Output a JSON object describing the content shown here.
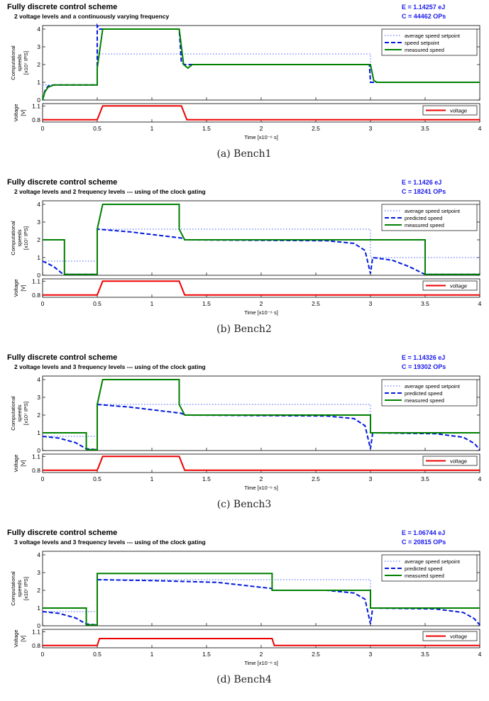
{
  "colors": {
    "setpoint": "#4060ff",
    "dashed": "#0018dd",
    "measured": "#008000",
    "voltage": "#ee0000",
    "stats": "#1a1aee"
  },
  "common": {
    "title": "Fully discrete control scheme",
    "speed_ylabel": [
      "Computational",
      "speeds",
      "[x10⁷ IPS]"
    ],
    "voltage_ylabel": [
      "Voltage",
      "[V]"
    ],
    "xlabel": "Time [x10⁻⁶ s]",
    "x_ticks": [
      "0",
      "0.5",
      "1",
      "1.5",
      "2",
      "2.5",
      "3",
      "3.5",
      "4"
    ],
    "speed_yticks": [
      "0",
      "1",
      "2",
      "3",
      "4"
    ],
    "voltage_yticks": [
      "0.8",
      "1.1"
    ],
    "legend_voltage": "voltage"
  },
  "chart_data": [
    {
      "type": "line",
      "title": "Fully discrete control scheme",
      "subtitle": "2 voltage levels and a continuously varying frequency",
      "energy": "E = 1.14257 eJ",
      "cycles": "C = 44462 OPs",
      "caption": "(a)  Bench1",
      "xlim": [
        0,
        4
      ],
      "ylim_speed": [
        0,
        4.2
      ],
      "ylim_voltage": [
        0.75,
        1.15
      ],
      "series": [
        {
          "name": "average speed setpoint",
          "style": "dotted",
          "points": [
            [
              0,
              0.85
            ],
            [
              0.5,
              0.85
            ],
            [
              0.5,
              2.6
            ],
            [
              1.27,
              2.6
            ],
            [
              3.0,
              2.6
            ],
            [
              3.0,
              1.0
            ],
            [
              4,
              1.0
            ]
          ]
        },
        {
          "name": "speed setpoint",
          "style": "dashed",
          "points": [
            [
              0,
              0
            ],
            [
              0.02,
              0.5
            ],
            [
              0.05,
              0.78
            ],
            [
              0.1,
              0.85
            ],
            [
              0.5,
              0.85
            ],
            [
              0.5,
              4.2
            ],
            [
              0.52,
              4.0
            ],
            [
              1.25,
              4.0
            ],
            [
              1.27,
              2.1
            ],
            [
              1.3,
              2.0
            ],
            [
              2.99,
              2.0
            ],
            [
              3.0,
              1.0
            ],
            [
              4,
              1.0
            ]
          ]
        },
        {
          "name": "measured speed",
          "style": "solid",
          "points": [
            [
              0,
              0
            ],
            [
              0.02,
              0.45
            ],
            [
              0.05,
              0.72
            ],
            [
              0.1,
              0.85
            ],
            [
              0.5,
              0.85
            ],
            [
              0.5,
              1.8
            ],
            [
              0.55,
              4.0
            ],
            [
              1.25,
              4.0
            ],
            [
              1.29,
              2.0
            ],
            [
              1.33,
              1.8
            ],
            [
              1.37,
              2.0
            ],
            [
              3.0,
              2.0
            ],
            [
              3.03,
              1.1
            ],
            [
              3.06,
              1.0
            ],
            [
              4,
              1.0
            ]
          ]
        }
      ],
      "voltage": [
        [
          0,
          0.8
        ],
        [
          0.5,
          0.8
        ],
        [
          0.55,
          1.1
        ],
        [
          1.27,
          1.1
        ],
        [
          1.32,
          0.8
        ],
        [
          4,
          0.8
        ]
      ]
    },
    {
      "type": "line",
      "title": "Fully discrete control scheme",
      "subtitle": "2 voltage levels and 2 frequency levels --- using of the clock gating",
      "energy": "E = 1.1426 eJ",
      "cycles": "C = 18241 OPs",
      "caption": "(b)  Bench2",
      "xlim": [
        0,
        4
      ],
      "ylim_speed": [
        0,
        4.2
      ],
      "ylim_voltage": [
        0.75,
        1.15
      ],
      "series": [
        {
          "name": "average speed setpoint",
          "style": "dotted",
          "points": [
            [
              0,
              0.8
            ],
            [
              0.5,
              0.8
            ],
            [
              0.5,
              2.6
            ],
            [
              3.0,
              2.6
            ],
            [
              3.0,
              1.0
            ],
            [
              4,
              1.0
            ]
          ]
        },
        {
          "name": "predicted speed",
          "style": "dashed",
          "points": [
            [
              0,
              0.8
            ],
            [
              0.1,
              0.5
            ],
            [
              0.18,
              0.1
            ],
            [
              0.2,
              0.05
            ],
            [
              0.5,
              0.05
            ],
            [
              0.5,
              2.6
            ],
            [
              0.8,
              2.45
            ],
            [
              1.27,
              2.1
            ],
            [
              1.3,
              2.0
            ],
            [
              2.6,
              1.95
            ],
            [
              2.85,
              1.8
            ],
            [
              2.95,
              1.4
            ],
            [
              3.0,
              0.1
            ],
            [
              3.02,
              1.0
            ],
            [
              3.2,
              0.85
            ],
            [
              3.35,
              0.5
            ],
            [
              3.5,
              0.05
            ],
            [
              4,
              0.05
            ]
          ]
        },
        {
          "name": "measured speed",
          "style": "solid",
          "points": [
            [
              0,
              2.0
            ],
            [
              0.2,
              2.0
            ],
            [
              0.2,
              0.05
            ],
            [
              0.5,
              0.05
            ],
            [
              0.5,
              2.6
            ],
            [
              0.55,
              4.0
            ],
            [
              1.25,
              4.0
            ],
            [
              1.25,
              2.6
            ],
            [
              1.3,
              2.0
            ],
            [
              3.5,
              2.0
            ],
            [
              3.5,
              0.05
            ],
            [
              4,
              0.05
            ]
          ]
        }
      ],
      "voltage": [
        [
          0,
          0.8
        ],
        [
          0.5,
          0.8
        ],
        [
          0.55,
          1.1
        ],
        [
          1.25,
          1.1
        ],
        [
          1.3,
          0.8
        ],
        [
          4,
          0.8
        ]
      ]
    },
    {
      "type": "line",
      "title": "Fully discrete control scheme",
      "subtitle": "2 voltage levels and 3 frequency levels --- using of the clock gating",
      "energy": "E = 1.14326 eJ",
      "cycles": "C = 19302 OPs",
      "caption": "(c)  Bench3",
      "xlim": [
        0,
        4
      ],
      "ylim_speed": [
        0,
        4.2
      ],
      "ylim_voltage": [
        0.75,
        1.15
      ],
      "series": [
        {
          "name": "average speed setpoint",
          "style": "dotted",
          "points": [
            [
              0,
              0.8
            ],
            [
              0.5,
              0.8
            ],
            [
              0.5,
              2.6
            ],
            [
              3.0,
              2.6
            ],
            [
              3.0,
              1.0
            ],
            [
              4,
              1.0
            ]
          ]
        },
        {
          "name": "predicted speed",
          "style": "dashed",
          "points": [
            [
              0,
              0.8
            ],
            [
              0.15,
              0.7
            ],
            [
              0.3,
              0.45
            ],
            [
              0.4,
              0.1
            ],
            [
              0.5,
              0.05
            ],
            [
              0.5,
              2.6
            ],
            [
              0.8,
              2.45
            ],
            [
              1.27,
              2.1
            ],
            [
              1.3,
              2.0
            ],
            [
              2.6,
              1.95
            ],
            [
              2.85,
              1.8
            ],
            [
              2.95,
              1.4
            ],
            [
              3.0,
              0.1
            ],
            [
              3.02,
              1.0
            ],
            [
              3.6,
              0.95
            ],
            [
              3.85,
              0.75
            ],
            [
              3.95,
              0.4
            ],
            [
              4,
              0.05
            ]
          ]
        },
        {
          "name": "measured speed",
          "style": "solid",
          "points": [
            [
              0,
              1.0
            ],
            [
              0.4,
              1.0
            ],
            [
              0.4,
              0.05
            ],
            [
              0.5,
              0.05
            ],
            [
              0.5,
              2.6
            ],
            [
              0.55,
              4.0
            ],
            [
              1.25,
              4.0
            ],
            [
              1.25,
              2.6
            ],
            [
              1.3,
              2.0
            ],
            [
              3.0,
              2.0
            ],
            [
              3.0,
              1.0
            ],
            [
              4,
              1.0
            ]
          ]
        }
      ],
      "voltage": [
        [
          0,
          0.8
        ],
        [
          0.5,
          0.8
        ],
        [
          0.55,
          1.1
        ],
        [
          1.25,
          1.1
        ],
        [
          1.3,
          0.8
        ],
        [
          4,
          0.8
        ]
      ]
    },
    {
      "type": "line",
      "title": "Fully discrete control scheme",
      "subtitle": "3 voltage levels and 3 frequency levels --- using of the clock gating",
      "energy": "E = 1.06744 eJ",
      "cycles": "C = 20815 OPs",
      "caption": "(d)  Bench4",
      "xlim": [
        0,
        4
      ],
      "ylim_speed": [
        0,
        4.2
      ],
      "ylim_voltage": [
        0.75,
        1.15
      ],
      "series": [
        {
          "name": "average speed setpoint",
          "style": "dotted",
          "points": [
            [
              0,
              0.8
            ],
            [
              0.5,
              0.8
            ],
            [
              0.5,
              2.6
            ],
            [
              3.0,
              2.6
            ],
            [
              3.0,
              1.0
            ],
            [
              4,
              1.0
            ]
          ]
        },
        {
          "name": "predicted speed",
          "style": "dashed",
          "points": [
            [
              0,
              0.8
            ],
            [
              0.15,
              0.7
            ],
            [
              0.3,
              0.45
            ],
            [
              0.4,
              0.1
            ],
            [
              0.5,
              0.05
            ],
            [
              0.5,
              2.6
            ],
            [
              1.0,
              2.55
            ],
            [
              1.6,
              2.45
            ],
            [
              2.1,
              2.1
            ],
            [
              2.1,
              2.0
            ],
            [
              2.6,
              2.0
            ],
            [
              2.85,
              1.85
            ],
            [
              2.95,
              1.5
            ],
            [
              3.0,
              0.1
            ],
            [
              3.02,
              1.0
            ],
            [
              3.6,
              0.95
            ],
            [
              3.85,
              0.75
            ],
            [
              3.95,
              0.4
            ],
            [
              4,
              0.05
            ]
          ]
        },
        {
          "name": "measured speed",
          "style": "solid",
          "points": [
            [
              0,
              1.0
            ],
            [
              0.4,
              1.0
            ],
            [
              0.4,
              0.05
            ],
            [
              0.5,
              0.05
            ],
            [
              0.5,
              2.95
            ],
            [
              2.1,
              2.95
            ],
            [
              2.1,
              2.0
            ],
            [
              3.0,
              2.0
            ],
            [
              3.0,
              1.0
            ],
            [
              4,
              1.0
            ]
          ]
        }
      ],
      "voltage": [
        [
          0,
          0.8
        ],
        [
          0.5,
          0.8
        ],
        [
          0.52,
          0.95
        ],
        [
          2.1,
          0.95
        ],
        [
          2.12,
          0.8
        ],
        [
          4,
          0.8
        ]
      ]
    }
  ]
}
